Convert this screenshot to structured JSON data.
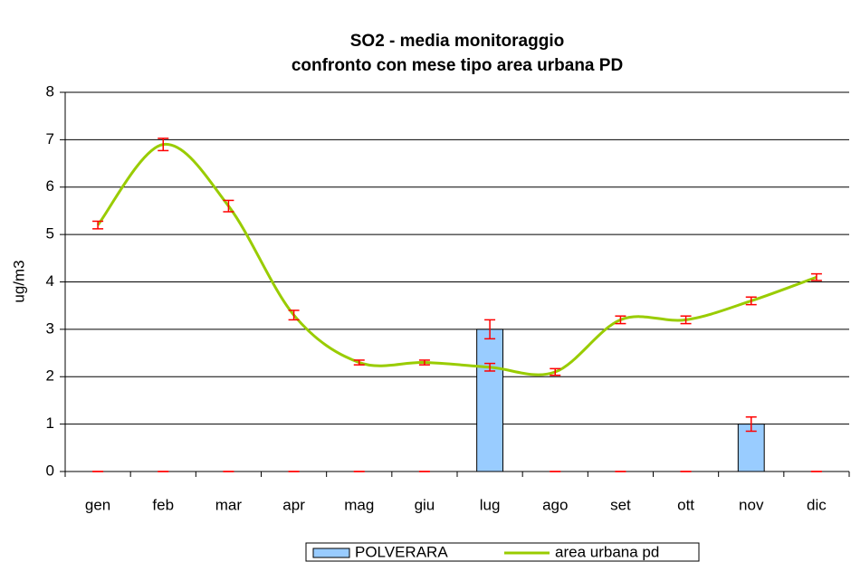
{
  "chart_data": {
    "type": "bar-line",
    "title": [
      "SO2 - media monitoraggio",
      "confronto con mese tipo area urbana PD"
    ],
    "y_label": "ug/m3",
    "categories": [
      "gen",
      "feb",
      "mar",
      "apr",
      "mag",
      "giu",
      "lug",
      "ago",
      "set",
      "ott",
      "nov",
      "dic"
    ],
    "series": [
      {
        "name": "POLVERARA",
        "type": "bar",
        "color": "#99ccff",
        "values": [
          0,
          0,
          0,
          0,
          0,
          0,
          3,
          0,
          0,
          0,
          1,
          0
        ],
        "errors": [
          0,
          0,
          0,
          0,
          0,
          0,
          0.2,
          0,
          0,
          0,
          0.15,
          0
        ]
      },
      {
        "name": "area urbana pd",
        "type": "line",
        "color": "#99cc00",
        "values": [
          5.2,
          6.9,
          5.6,
          3.3,
          2.3,
          2.3,
          2.2,
          2.1,
          3.2,
          3.2,
          3.6,
          4.1
        ],
        "errors": [
          0.08,
          0.13,
          0.12,
          0.1,
          0.05,
          0.05,
          0.08,
          0.07,
          0.08,
          0.08,
          0.08,
          0.07
        ]
      }
    ],
    "error_color": "#ff0000",
    "ylim": [
      0,
      8
    ],
    "yticks": [
      0,
      1,
      2,
      3,
      4,
      5,
      6,
      7,
      8
    ],
    "grid": true,
    "legend": "bottom"
  }
}
